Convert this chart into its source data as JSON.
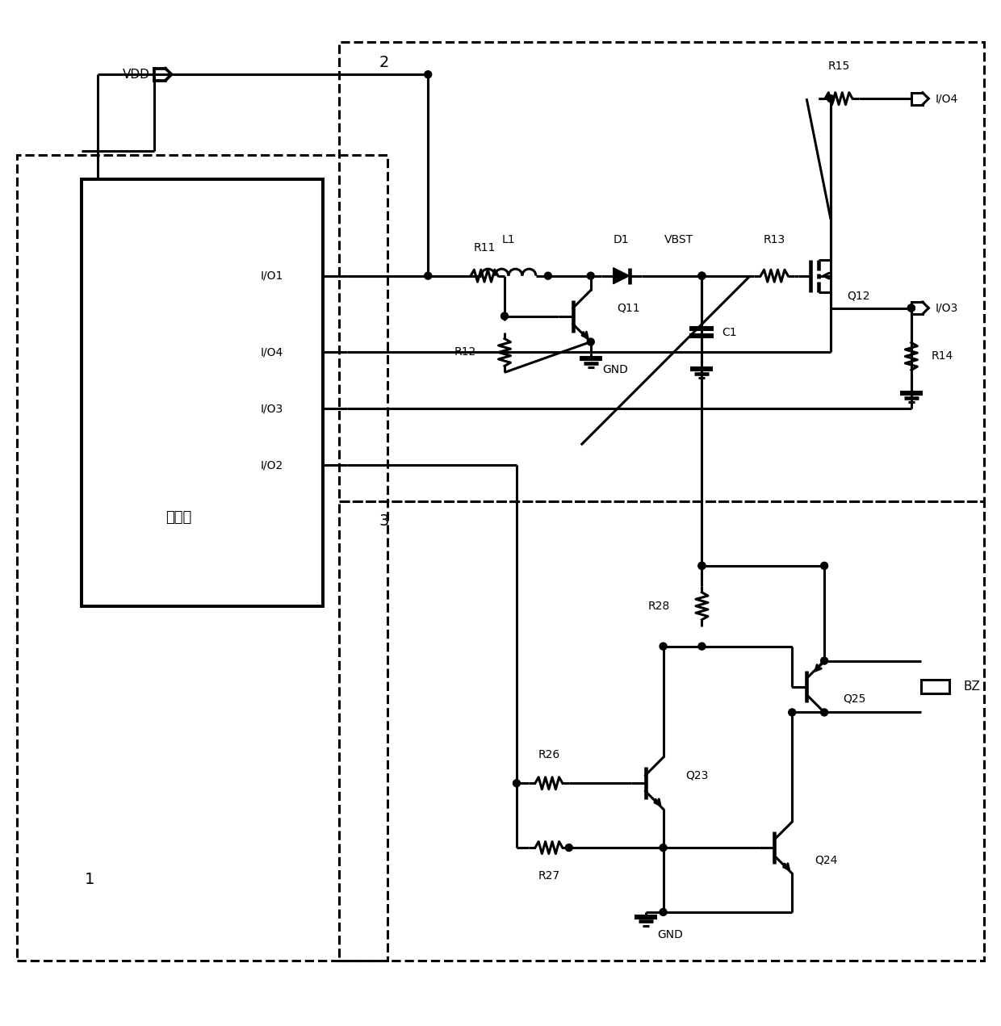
{
  "bg_color": "#ffffff",
  "line_color": "#000000",
  "lw": 2.2,
  "fig_width": 12.4,
  "fig_height": 12.71,
  "xlim": [
    0,
    124
  ],
  "ylim": [
    0,
    127.1
  ]
}
